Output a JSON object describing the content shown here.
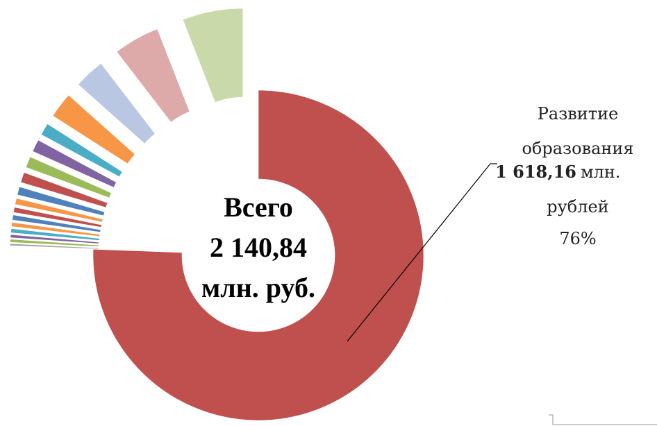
{
  "chart_data": {
    "type": "donut",
    "categories": [
      "Развитие образования",
      null,
      null,
      null,
      null,
      null,
      null,
      null,
      null,
      null,
      null,
      null,
      null,
      null,
      null,
      null,
      null,
      null
    ],
    "values": [
      1618.16,
      4.3,
      6.4,
      6.4,
      8.6,
      8.6,
      10.7,
      10.7,
      12.8,
      17.1,
      21.4,
      23.5,
      25.7,
      25.7,
      53.5,
      64.2,
      96.3,
      126.8
    ],
    "colors": [
      "#C0504D",
      "#A5A5A5",
      "#9BBB59",
      "#8064A2",
      "#4BACC6",
      "#F79646",
      "#4F81BD",
      "#C0504D",
      "#F79646",
      "#4F81BD",
      "#C0504D",
      "#9BBB59",
      "#8064A2",
      "#4BACC6",
      "#F79646",
      "#B9C7E3",
      "#DEAAA9",
      "#C9D9AA"
    ],
    "value_labels": [
      "1 618,16",
      null,
      null,
      null,
      null,
      null,
      null,
      null,
      null,
      null,
      null,
      null,
      null,
      null,
      null,
      null,
      null,
      null
    ],
    "unit": "млн. рублей",
    "percent_label": "76%",
    "center_label": [
      "Всего",
      "2 140,84",
      "млн. руб."
    ]
  }
}
